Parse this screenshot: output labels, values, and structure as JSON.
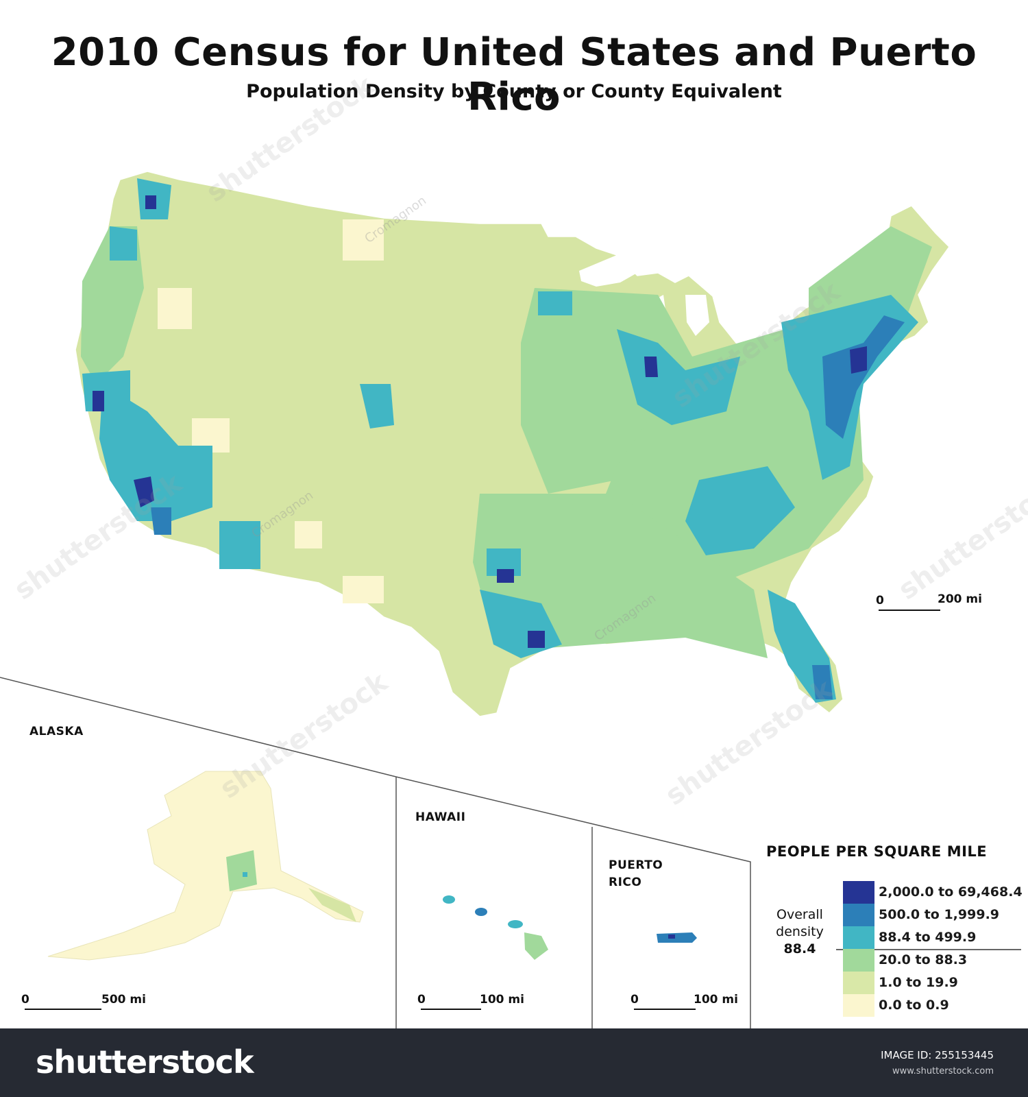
{
  "title": "2010 Census for United States and Puerto Rico",
  "subtitle": "Population Density by County or County Equivalent",
  "insets": {
    "alaska": "ALASKA",
    "hawaii": "HAWAII",
    "puerto_rico_line1": "PUERTO",
    "puerto_rico_line2": "RICO"
  },
  "scales": {
    "main": {
      "zero": "0",
      "distance": "200 mi"
    },
    "alaska": {
      "zero": "0",
      "distance": "500 mi"
    },
    "hawaii": {
      "zero": "0",
      "distance": "100 mi"
    },
    "puerto_rico": {
      "zero": "0",
      "distance": "100 mi"
    }
  },
  "legend": {
    "title": "PEOPLE PER SQUARE MILE",
    "overall_label_line1": "Overall",
    "overall_label_line2": "density",
    "overall_value": "88.4",
    "classes": [
      {
        "label": "2,000.0 to 69,468.4",
        "color": "#253494"
      },
      {
        "label": "500.0 to 1,999.9",
        "color": "#2c7fb8"
      },
      {
        "label": "88.4 to 499.9",
        "color": "#41b6c4"
      },
      {
        "label": "20.0 to 88.3",
        "color": "#a1d99b"
      },
      {
        "label": "1.0 to 19.9",
        "color": "#d9e8a8"
      },
      {
        "label": "0.0 to 0.9",
        "color": "#fbf6cf"
      }
    ]
  },
  "watermark": {
    "brand": "shutterstock",
    "author": "Cromagnon"
  },
  "footer": {
    "brand": "shutterstock",
    "image_id": "IMAGE ID: 255153445",
    "url": "www.shutterstock.com"
  }
}
